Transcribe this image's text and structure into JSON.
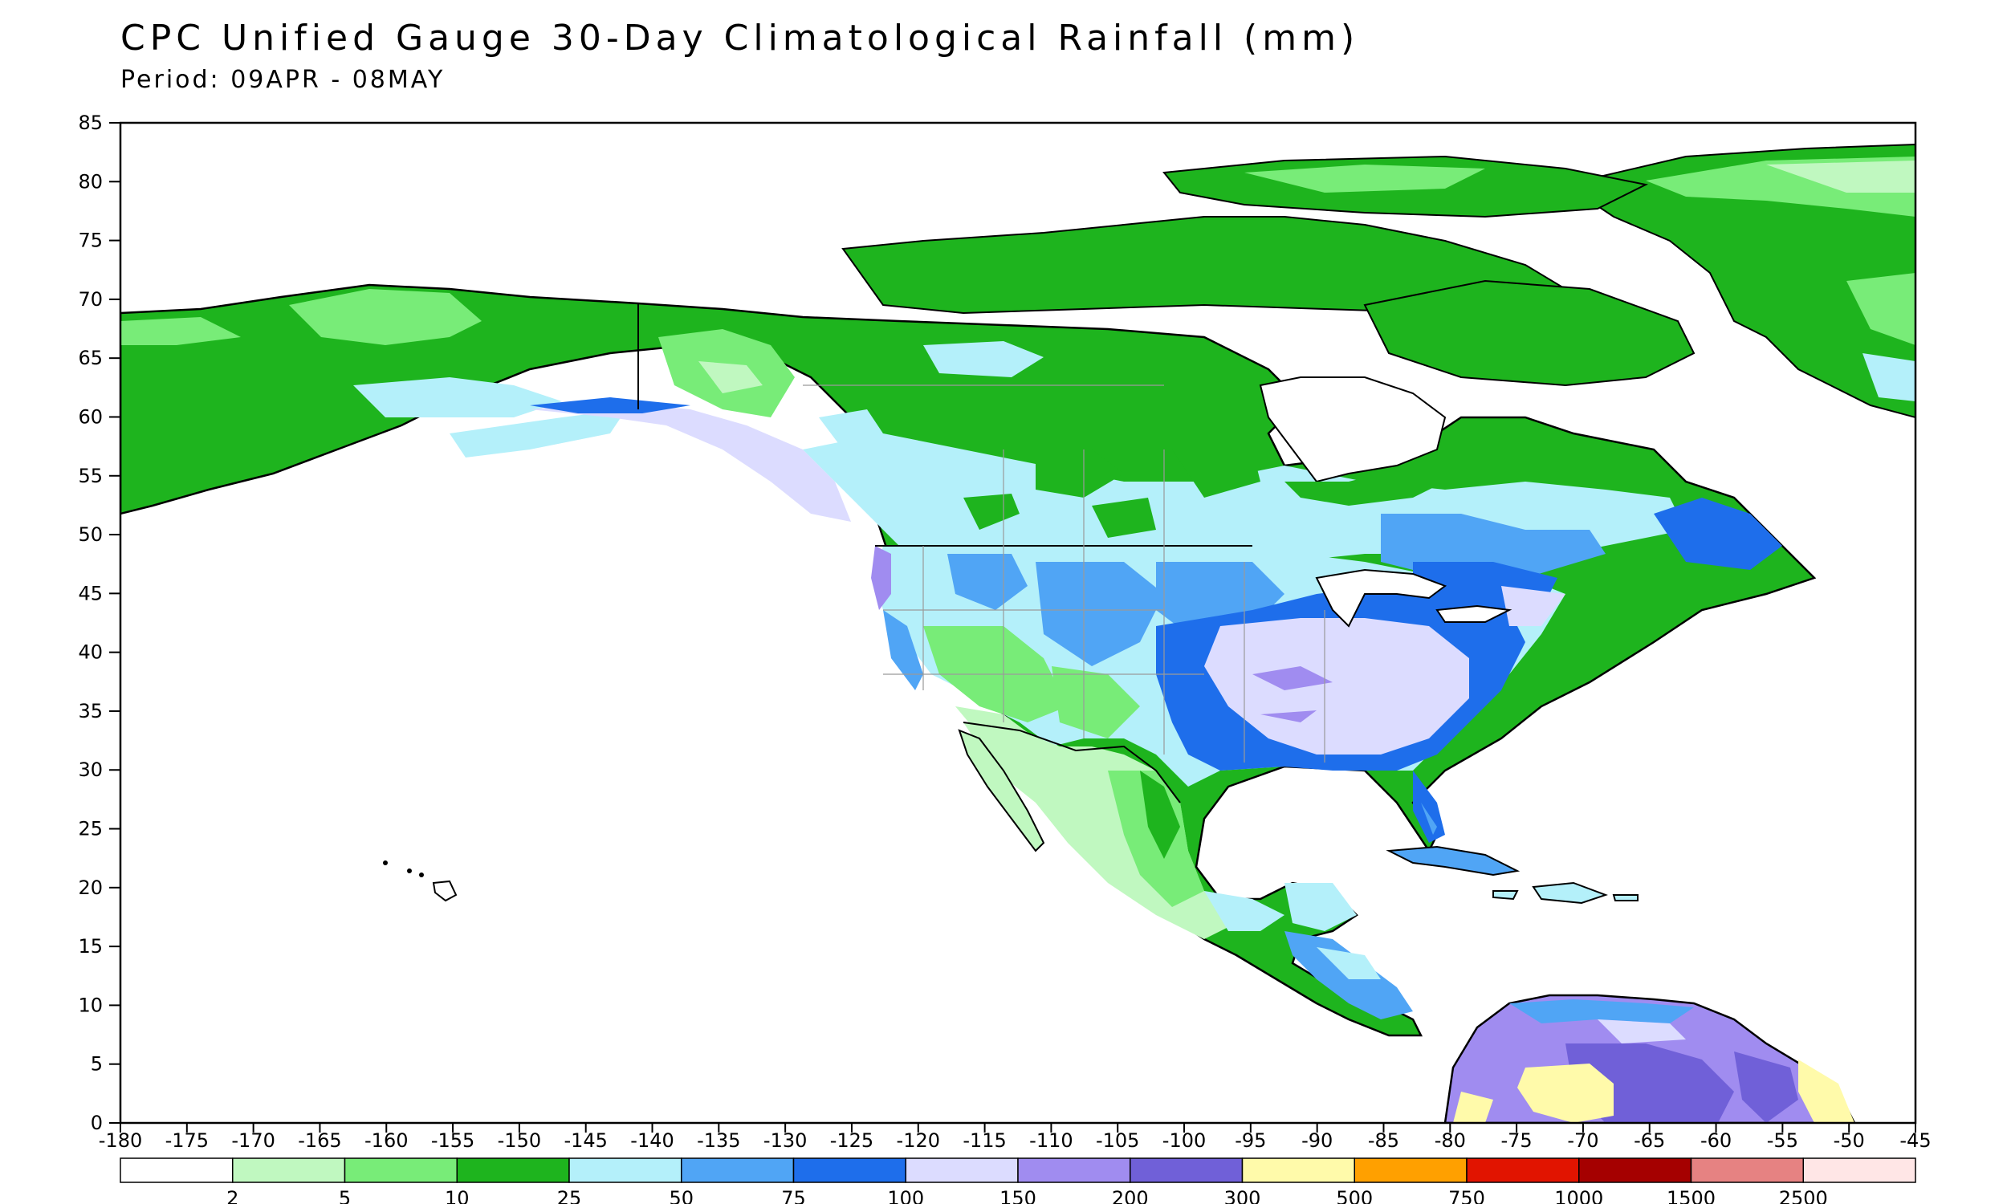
{
  "title": "CPC Unified Gauge 30-Day Climatological Rainfall (mm)",
  "subtitle": "Period: 09APR - 08MAY",
  "colors": {
    "ocean": "#ffffff",
    "coast": "#000000",
    "border": "#9a9a9a"
  },
  "chart_data": {
    "type": "heatmap",
    "projection": "lat-lon",
    "xlim": [
      -180,
      -45
    ],
    "ylim": [
      0,
      85
    ],
    "x_ticks": [
      -180,
      -175,
      -170,
      -165,
      -160,
      -155,
      -150,
      -145,
      -140,
      -135,
      -130,
      -125,
      -120,
      -115,
      -110,
      -105,
      -100,
      -95,
      -90,
      -85,
      -80,
      -75,
      -70,
      -65,
      -60,
      -55,
      -50,
      -45
    ],
    "y_ticks": [
      85,
      80,
      75,
      70,
      65,
      60,
      55,
      50,
      45,
      40,
      35,
      30,
      25,
      20,
      15,
      10,
      5,
      0
    ],
    "colorbar": {
      "labels": [
        "2",
        "5",
        "10",
        "25",
        "50",
        "75",
        "100",
        "150",
        "200",
        "300",
        "500",
        "750",
        "1000",
        "1500",
        "2500"
      ],
      "colors": [
        "#ffffff",
        "#c0f8c0",
        "#78ec78",
        "#1eb41e",
        "#b4f0fa",
        "#50a5f5",
        "#1e6eeb",
        "#dcdcff",
        "#a08cf0",
        "#7060d8",
        "#fffaaa",
        "#ffa000",
        "#e11400",
        "#a50000",
        "#e68282",
        "#ffe6e6"
      ]
    },
    "regions": [
      {
        "name": "Arctic Canada",
        "class": "25-50"
      },
      {
        "name": "Alaska interior",
        "class": "10-25"
      },
      {
        "name": "Canadian Prairies",
        "class": "25-50"
      },
      {
        "name": "Southeast Alaska coast",
        "class": "150-200"
      },
      {
        "name": "Pacific Northwest coast",
        "class": "150-200"
      },
      {
        "name": "US Southwest",
        "class": "5-10"
      },
      {
        "name": "Central Plains",
        "class": "75-100"
      },
      {
        "name": "Mississippi Valley",
        "class": "100-150"
      },
      {
        "name": "US East",
        "class": "75-100"
      },
      {
        "name": "Eastern Canada",
        "class": "50-75"
      },
      {
        "name": "Greenland",
        "class": "10-25"
      },
      {
        "name": "Northwest Mexico",
        "class": "2-5"
      },
      {
        "name": "Southern Mexico",
        "class": "25-50"
      },
      {
        "name": "Caribbean",
        "class": "50-75"
      },
      {
        "name": "Central America",
        "class": "75-100"
      },
      {
        "name": "Northern South America",
        "class": "150-300"
      },
      {
        "name": "Venezuela llanos",
        "class": "300-500"
      }
    ]
  }
}
